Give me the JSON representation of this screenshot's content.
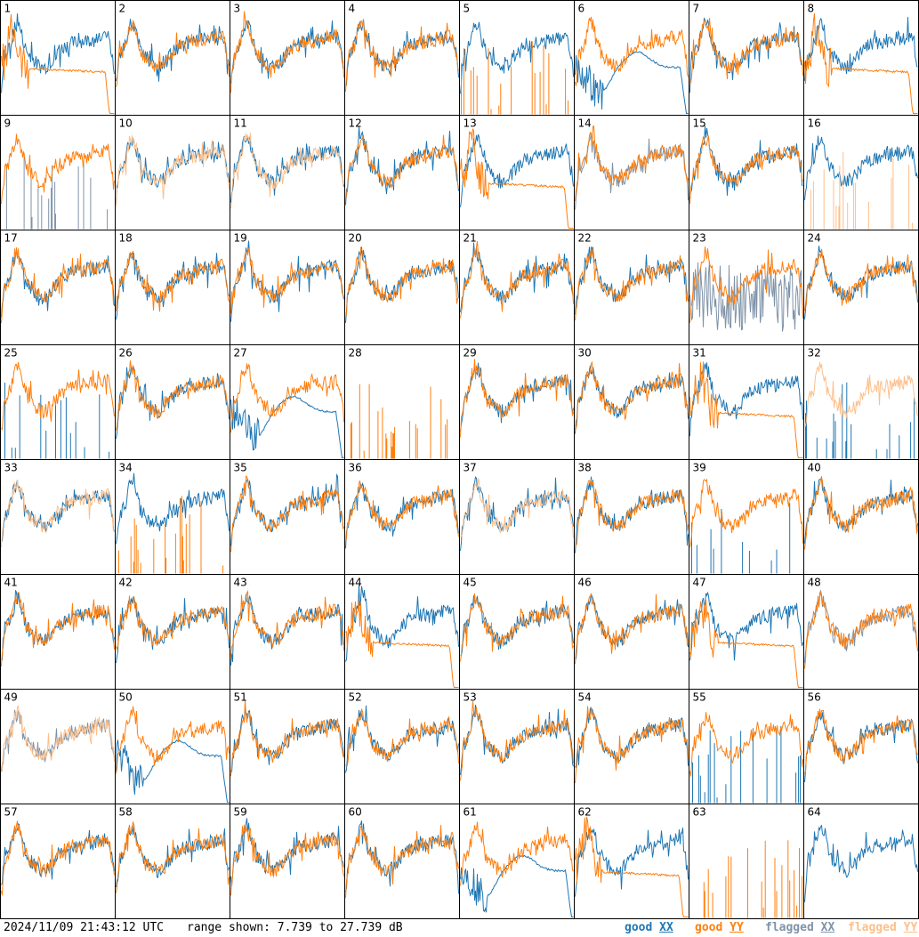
{
  "footer": {
    "timestamp": "2024/11/09 21:43:12 UTC",
    "range_text": "range shown: 7.739 to 27.739 dB",
    "legend": [
      {
        "quality": "good",
        "pol": "XX",
        "color": "#1f77b4"
      },
      {
        "quality": "good",
        "pol": "YY",
        "color": "#ff7f0e"
      },
      {
        "quality": "flagged",
        "pol": "XX",
        "color": "#7f93a8"
      },
      {
        "quality": "flagged",
        "pol": "YY",
        "color": "#fdbf8a"
      }
    ]
  },
  "chart_data": {
    "type": "line",
    "grid": {
      "rows": 8,
      "cols": 8
    },
    "ylim": [
      7.739,
      27.739
    ],
    "units": "dB",
    "colors": {
      "good_xx": "#1f77b4",
      "good_yy": "#ff7f0e",
      "flagged_xx": "#7f93a8",
      "flagged_yy": "#fdbf8a"
    },
    "tiles": [
      {
        "id": "1",
        "xx": {
          "flag": "good",
          "shape": "normal",
          "seed": 101
        },
        "yy": {
          "flag": "good",
          "shape": "dropoff",
          "seed": 201
        }
      },
      {
        "id": "2",
        "xx": {
          "flag": "good",
          "shape": "normal",
          "seed": 102
        },
        "yy": {
          "flag": "good",
          "shape": "normal",
          "seed": 202
        }
      },
      {
        "id": "3",
        "xx": {
          "flag": "good",
          "shape": "normal",
          "seed": 103
        },
        "yy": {
          "flag": "good",
          "shape": "normal",
          "seed": 203
        }
      },
      {
        "id": "4",
        "xx": {
          "flag": "good",
          "shape": "normal",
          "seed": 104
        },
        "yy": {
          "flag": "good",
          "shape": "normal",
          "seed": 204
        }
      },
      {
        "id": "5",
        "xx": {
          "flag": "good",
          "shape": "normal",
          "seed": 105
        },
        "yy": {
          "flag": "good",
          "shape": "spikes",
          "seed": 205
        }
      },
      {
        "id": "6",
        "xx": {
          "flag": "good",
          "shape": "smooth",
          "seed": 106
        },
        "yy": {
          "flag": "good",
          "shape": "normal",
          "seed": 206
        }
      },
      {
        "id": "7",
        "xx": {
          "flag": "good",
          "shape": "normal",
          "seed": 107
        },
        "yy": {
          "flag": "good",
          "shape": "normal",
          "seed": 207
        }
      },
      {
        "id": "8",
        "xx": {
          "flag": "good",
          "shape": "normal",
          "seed": 108
        },
        "yy": {
          "flag": "good",
          "shape": "dropoff",
          "seed": 208
        }
      },
      {
        "id": "9",
        "xx": {
          "flag": "flagged",
          "shape": "spikes",
          "seed": 109
        },
        "yy": {
          "flag": "good",
          "shape": "normal",
          "seed": 209
        }
      },
      {
        "id": "10",
        "xx": {
          "flag": "good",
          "shape": "normal",
          "seed": 110
        },
        "yy": {
          "flag": "flagged",
          "shape": "normal",
          "seed": 210
        }
      },
      {
        "id": "11",
        "xx": {
          "flag": "good",
          "shape": "normal",
          "seed": 111
        },
        "yy": {
          "flag": "flagged",
          "shape": "normal",
          "seed": 211
        }
      },
      {
        "id": "12",
        "xx": {
          "flag": "good",
          "shape": "normal",
          "seed": 112
        },
        "yy": {
          "flag": "good",
          "shape": "normal",
          "seed": 212
        }
      },
      {
        "id": "13",
        "xx": {
          "flag": "good",
          "shape": "normal",
          "seed": 113
        },
        "yy": {
          "flag": "good",
          "shape": "dropoff",
          "seed": 213
        }
      },
      {
        "id": "14",
        "xx": {
          "flag": "flagged",
          "shape": "normal",
          "seed": 114
        },
        "yy": {
          "flag": "good",
          "shape": "normal",
          "seed": 214
        }
      },
      {
        "id": "15",
        "xx": {
          "flag": "good",
          "shape": "normal",
          "seed": 115
        },
        "yy": {
          "flag": "good",
          "shape": "normal",
          "seed": 215
        }
      },
      {
        "id": "16",
        "xx": {
          "flag": "good",
          "shape": "normal",
          "seed": 116
        },
        "yy": {
          "flag": "flagged",
          "shape": "spikes",
          "seed": 216
        }
      },
      {
        "id": "17",
        "xx": {
          "flag": "good",
          "shape": "normal",
          "seed": 117
        },
        "yy": {
          "flag": "good",
          "shape": "normal",
          "seed": 217
        }
      },
      {
        "id": "18",
        "xx": {
          "flag": "good",
          "shape": "normal",
          "seed": 118
        },
        "yy": {
          "flag": "good",
          "shape": "normal",
          "seed": 218
        }
      },
      {
        "id": "19",
        "xx": {
          "flag": "good",
          "shape": "normal",
          "seed": 119
        },
        "yy": {
          "flag": "good",
          "shape": "normal",
          "seed": 219
        }
      },
      {
        "id": "20",
        "xx": {
          "flag": "good",
          "shape": "normal",
          "seed": 120
        },
        "yy": {
          "flag": "good",
          "shape": "normal",
          "seed": 220
        }
      },
      {
        "id": "21",
        "xx": {
          "flag": "good",
          "shape": "normal",
          "seed": 121
        },
        "yy": {
          "flag": "good",
          "shape": "normal",
          "seed": 221
        }
      },
      {
        "id": "22",
        "xx": {
          "flag": "good",
          "shape": "normal",
          "seed": 122
        },
        "yy": {
          "flag": "good",
          "shape": "normal",
          "seed": 222
        }
      },
      {
        "id": "23",
        "xx": {
          "flag": "flagged",
          "shape": "noisy",
          "seed": 123
        },
        "yy": {
          "flag": "good",
          "shape": "normal",
          "seed": 223
        }
      },
      {
        "id": "24",
        "xx": {
          "flag": "good",
          "shape": "normal",
          "seed": 124
        },
        "yy": {
          "flag": "good",
          "shape": "normal",
          "seed": 224
        }
      },
      {
        "id": "25",
        "xx": {
          "flag": "good",
          "shape": "spikes",
          "seed": 125
        },
        "yy": {
          "flag": "good",
          "shape": "normal",
          "seed": 225
        }
      },
      {
        "id": "26",
        "xx": {
          "flag": "good",
          "shape": "normal",
          "seed": 126
        },
        "yy": {
          "flag": "good",
          "shape": "normal",
          "seed": 226
        }
      },
      {
        "id": "27",
        "xx": {
          "flag": "good",
          "shape": "smooth",
          "seed": 127
        },
        "yy": {
          "flag": "good",
          "shape": "normal",
          "seed": 227
        }
      },
      {
        "id": "28",
        "xx": {
          "flag": "good",
          "shape": "none",
          "seed": 128
        },
        "yy": {
          "flag": "good",
          "shape": "spikes",
          "seed": 228
        }
      },
      {
        "id": "29",
        "xx": {
          "flag": "good",
          "shape": "normal",
          "seed": 129
        },
        "yy": {
          "flag": "good",
          "shape": "normal",
          "seed": 229
        }
      },
      {
        "id": "30",
        "xx": {
          "flag": "good",
          "shape": "normal",
          "seed": 130
        },
        "yy": {
          "flag": "good",
          "shape": "normal",
          "seed": 230
        }
      },
      {
        "id": "31",
        "xx": {
          "flag": "good",
          "shape": "normal",
          "seed": 131
        },
        "yy": {
          "flag": "good",
          "shape": "dropoff",
          "seed": 231
        }
      },
      {
        "id": "32",
        "xx": {
          "flag": "good",
          "shape": "spikes",
          "seed": 132
        },
        "yy": {
          "flag": "flagged",
          "shape": "normal",
          "seed": 232
        }
      },
      {
        "id": "33",
        "xx": {
          "flag": "good",
          "shape": "normal",
          "seed": 133
        },
        "yy": {
          "flag": "flagged",
          "shape": "normal",
          "seed": 233
        }
      },
      {
        "id": "34",
        "xx": {
          "flag": "good",
          "shape": "normal",
          "seed": 134
        },
        "yy": {
          "flag": "good",
          "shape": "spikes",
          "seed": 234
        }
      },
      {
        "id": "35",
        "xx": {
          "flag": "good",
          "shape": "normal",
          "seed": 135
        },
        "yy": {
          "flag": "good",
          "shape": "normal",
          "seed": 235
        }
      },
      {
        "id": "36",
        "xx": {
          "flag": "good",
          "shape": "normal",
          "seed": 136
        },
        "yy": {
          "flag": "good",
          "shape": "normal",
          "seed": 236
        }
      },
      {
        "id": "37",
        "xx": {
          "flag": "good",
          "shape": "normal",
          "seed": 137
        },
        "yy": {
          "flag": "flagged",
          "shape": "normal",
          "seed": 237
        }
      },
      {
        "id": "38",
        "xx": {
          "flag": "good",
          "shape": "normal",
          "seed": 138
        },
        "yy": {
          "flag": "good",
          "shape": "normal",
          "seed": 238
        }
      },
      {
        "id": "39",
        "xx": {
          "flag": "good",
          "shape": "spikes",
          "seed": 139
        },
        "yy": {
          "flag": "good",
          "shape": "normal",
          "seed": 239
        }
      },
      {
        "id": "40",
        "xx": {
          "flag": "good",
          "shape": "normal",
          "seed": 140
        },
        "yy": {
          "flag": "good",
          "shape": "normal",
          "seed": 240
        }
      },
      {
        "id": "41",
        "xx": {
          "flag": "good",
          "shape": "normal",
          "seed": 141
        },
        "yy": {
          "flag": "good",
          "shape": "normal",
          "seed": 241
        }
      },
      {
        "id": "42",
        "xx": {
          "flag": "good",
          "shape": "normal",
          "seed": 142
        },
        "yy": {
          "flag": "good",
          "shape": "normal",
          "seed": 242
        }
      },
      {
        "id": "43",
        "xx": {
          "flag": "good",
          "shape": "normal",
          "seed": 143
        },
        "yy": {
          "flag": "good",
          "shape": "normal",
          "seed": 243
        }
      },
      {
        "id": "44",
        "xx": {
          "flag": "good",
          "shape": "normal",
          "seed": 144
        },
        "yy": {
          "flag": "good",
          "shape": "dropoff",
          "seed": 244
        }
      },
      {
        "id": "45",
        "xx": {
          "flag": "good",
          "shape": "normal",
          "seed": 145
        },
        "yy": {
          "flag": "good",
          "shape": "normal",
          "seed": 245
        }
      },
      {
        "id": "46",
        "xx": {
          "flag": "good",
          "shape": "normal",
          "seed": 146
        },
        "yy": {
          "flag": "good",
          "shape": "normal",
          "seed": 246
        }
      },
      {
        "id": "47",
        "xx": {
          "flag": "good",
          "shape": "normal",
          "seed": 147
        },
        "yy": {
          "flag": "good",
          "shape": "dropoff",
          "seed": 247
        }
      },
      {
        "id": "48",
        "xx": {
          "flag": "flagged",
          "shape": "normal",
          "seed": 148
        },
        "yy": {
          "flag": "good",
          "shape": "normal",
          "seed": 248
        }
      },
      {
        "id": "49",
        "xx": {
          "flag": "flagged",
          "shape": "normal",
          "seed": 149
        },
        "yy": {
          "flag": "flagged",
          "shape": "normal",
          "seed": 249
        }
      },
      {
        "id": "50",
        "xx": {
          "flag": "good",
          "shape": "smooth",
          "seed": 150
        },
        "yy": {
          "flag": "good",
          "shape": "normal",
          "seed": 250
        }
      },
      {
        "id": "51",
        "xx": {
          "flag": "good",
          "shape": "normal",
          "seed": 151
        },
        "yy": {
          "flag": "good",
          "shape": "normal",
          "seed": 251
        }
      },
      {
        "id": "52",
        "xx": {
          "flag": "good",
          "shape": "normal",
          "seed": 152
        },
        "yy": {
          "flag": "good",
          "shape": "normal",
          "seed": 252
        }
      },
      {
        "id": "53",
        "xx": {
          "flag": "good",
          "shape": "normal",
          "seed": 153
        },
        "yy": {
          "flag": "good",
          "shape": "normal",
          "seed": 253
        }
      },
      {
        "id": "54",
        "xx": {
          "flag": "good",
          "shape": "normal",
          "seed": 154
        },
        "yy": {
          "flag": "good",
          "shape": "normal",
          "seed": 254
        }
      },
      {
        "id": "55",
        "xx": {
          "flag": "good",
          "shape": "spikes",
          "seed": 155
        },
        "yy": {
          "flag": "good",
          "shape": "normal",
          "seed": 255
        }
      },
      {
        "id": "56",
        "xx": {
          "flag": "good",
          "shape": "normal",
          "seed": 156
        },
        "yy": {
          "flag": "good",
          "shape": "normal",
          "seed": 256
        }
      },
      {
        "id": "57",
        "xx": {
          "flag": "good",
          "shape": "normal",
          "seed": 157
        },
        "yy": {
          "flag": "good",
          "shape": "normal",
          "seed": 257
        }
      },
      {
        "id": "58",
        "xx": {
          "flag": "good",
          "shape": "normal",
          "seed": 158
        },
        "yy": {
          "flag": "good",
          "shape": "normal",
          "seed": 258
        }
      },
      {
        "id": "59",
        "xx": {
          "flag": "good",
          "shape": "normal",
          "seed": 159
        },
        "yy": {
          "flag": "good",
          "shape": "normal",
          "seed": 259
        }
      },
      {
        "id": "60",
        "xx": {
          "flag": "good",
          "shape": "normal",
          "seed": 160
        },
        "yy": {
          "flag": "good",
          "shape": "normal",
          "seed": 260
        }
      },
      {
        "id": "61",
        "xx": {
          "flag": "good",
          "shape": "smooth",
          "seed": 161
        },
        "yy": {
          "flag": "good",
          "shape": "normal",
          "seed": 261
        }
      },
      {
        "id": "62",
        "xx": {
          "flag": "good",
          "shape": "normal",
          "seed": 162
        },
        "yy": {
          "flag": "good",
          "shape": "dropoff",
          "seed": 262
        }
      },
      {
        "id": "63",
        "xx": {
          "flag": "good",
          "shape": "none",
          "seed": 163
        },
        "yy": {
          "flag": "good",
          "shape": "spikes",
          "seed": 263
        }
      },
      {
        "id": "64",
        "xx": {
          "flag": "good",
          "shape": "normal",
          "seed": 164
        },
        "yy": {
          "flag": "good",
          "shape": "none",
          "seed": 264
        }
      }
    ]
  }
}
